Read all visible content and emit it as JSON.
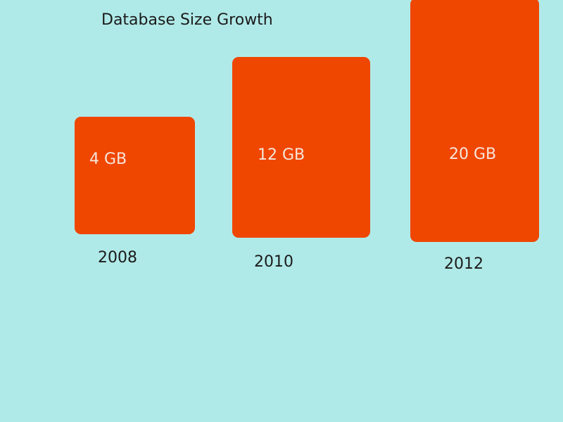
{
  "colors": {
    "background": "#b0eae8",
    "bar": "#ef4600",
    "bar_label": "#f6e6da",
    "text": "#1b1b1b"
  },
  "chart_data": {
    "type": "bar",
    "title": "Database Size Growth",
    "categories": [
      "2008",
      "2010",
      "2012"
    ],
    "values": [
      4,
      12,
      20
    ],
    "data_labels": [
      "4 GB",
      "12 GB",
      "20 GB"
    ],
    "unit": "GB",
    "grid": false,
    "legend": "none"
  }
}
